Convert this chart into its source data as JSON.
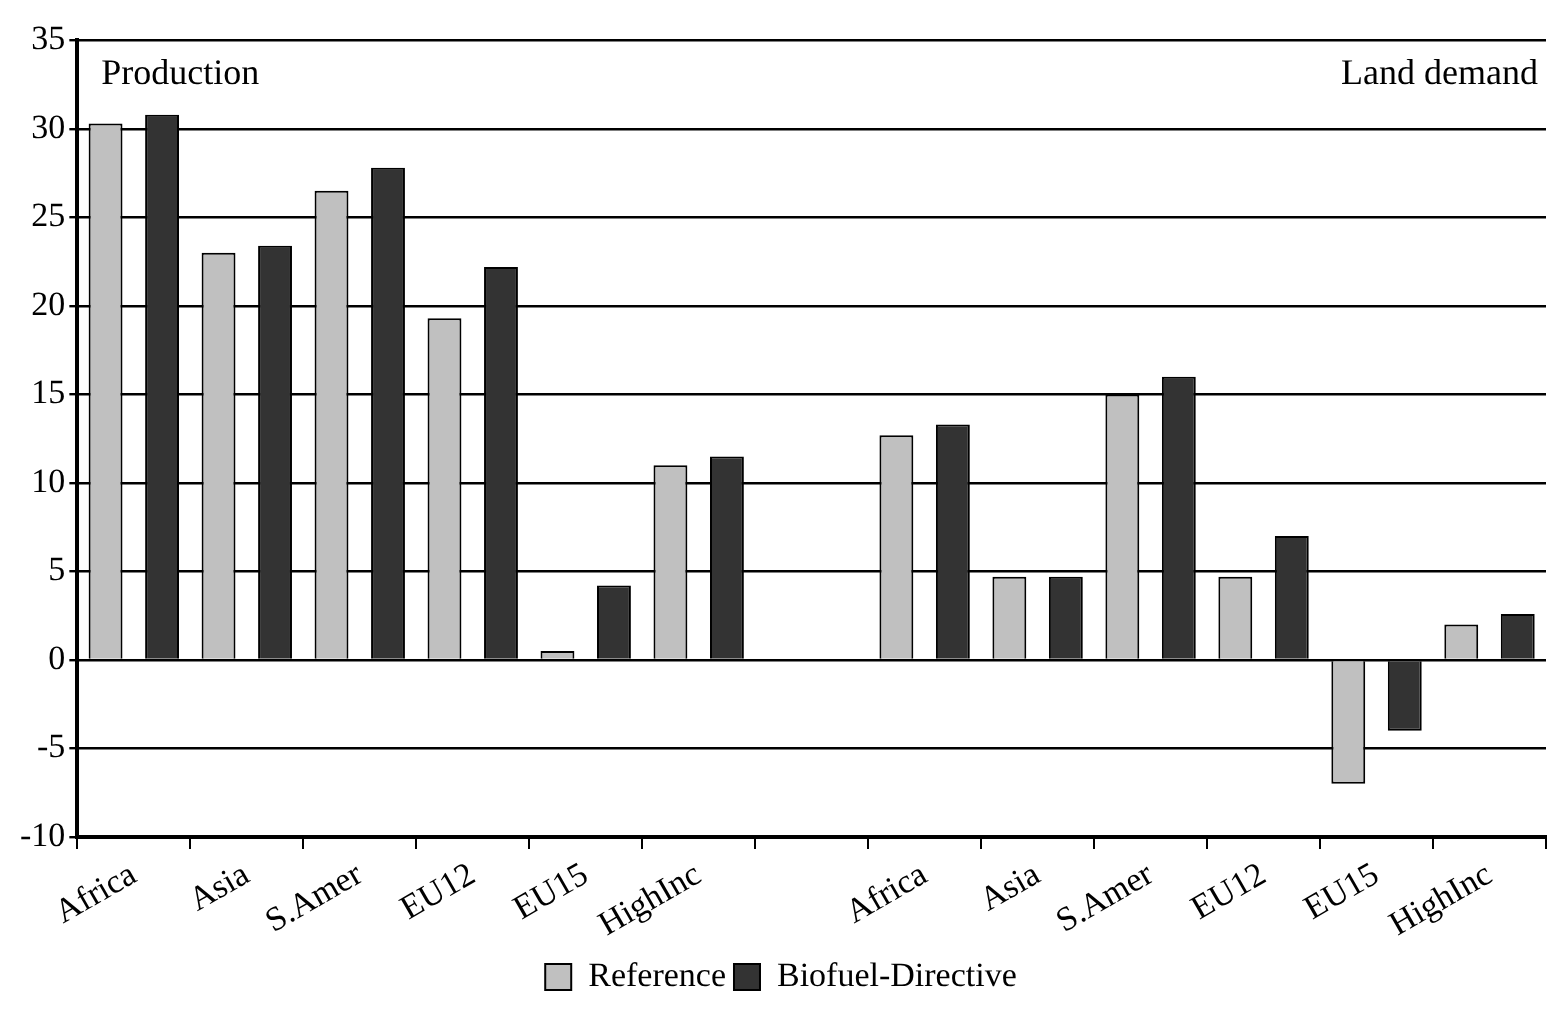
{
  "chart_data": {
    "type": "bar",
    "categories": [
      "Africa",
      "Asia",
      "S.Amer",
      "EU12",
      "EU15",
      "HighInc",
      null,
      "Africa",
      "Asia",
      "S.Amer",
      "EU12",
      "EU15",
      "HighInc"
    ],
    "series": [
      {
        "name": "Reference",
        "color": "#c0c0c0",
        "values": [
          30.3,
          23,
          26.5,
          19.3,
          0.5,
          11,
          null,
          12.7,
          4.7,
          15,
          4.7,
          -7,
          2
        ]
      },
      {
        "name": "Biofuel-Directive",
        "color": "#333333",
        "values": [
          30.8,
          23.4,
          27.8,
          22.2,
          4.2,
          11.5,
          null,
          13.3,
          4.7,
          16,
          7,
          -4,
          2.6
        ]
      }
    ],
    "ylim": [
      -10,
      35
    ],
    "yticks": [
      -10,
      -5,
      0,
      5,
      10,
      15,
      20,
      25,
      30,
      35
    ],
    "grid": "y",
    "legend": "bottom",
    "annotations": [
      "Production",
      "Land demand"
    ]
  }
}
